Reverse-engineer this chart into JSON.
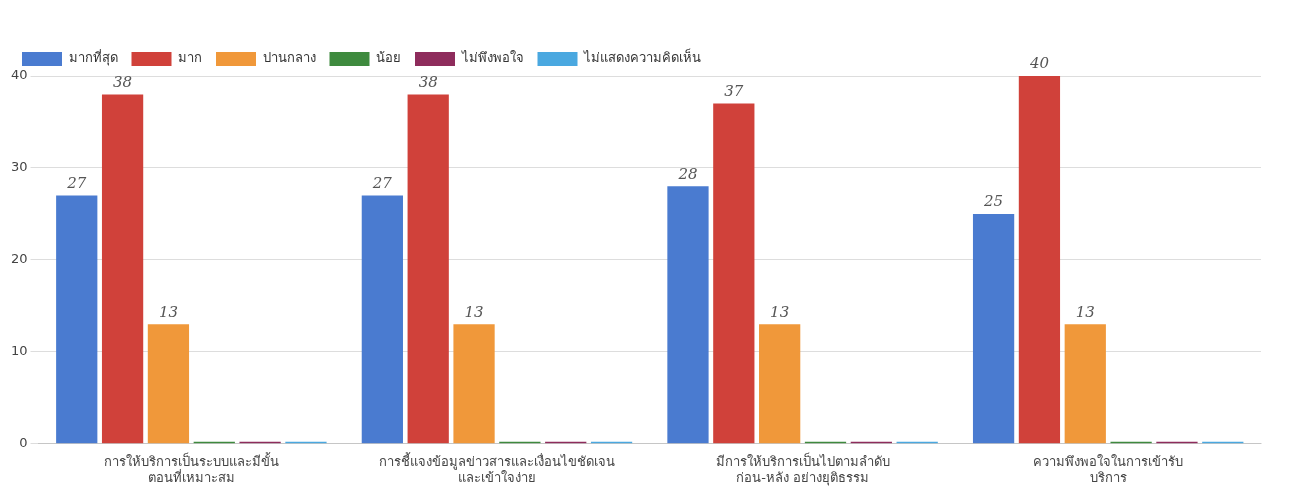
{
  "chart_data": {
    "type": "bar",
    "categories": [
      "การให้บริการเป็นระบบและมีขั้น\nตอนที่เหมาะสม",
      "การชี้แจงข้อมูลข่าวสารและเงื่อนไขชัดเจน\nและเข้าใจง่าย",
      "มีการให้บริการเป็นไปตามลำดับ\nก่อน-หลัง อย่างยุติธรรม",
      "ความพึงพอใจในการเข้ารับ\nบริการ"
    ],
    "series": [
      {
        "name": "มากที่สุด",
        "color": "#4a7bd0",
        "values": [
          27,
          27,
          28,
          25
        ],
        "value_labels": [
          "27",
          "27",
          "28",
          "25"
        ]
      },
      {
        "name": "มาก",
        "color": "#d0413a",
        "values": [
          38,
          38,
          37,
          40
        ],
        "value_labels": [
          "38",
          "38",
          "37",
          "40"
        ]
      },
      {
        "name": "ปานกลาง",
        "color": "#f0983a",
        "values": [
          13,
          13,
          13,
          13
        ],
        "value_labels": [
          "13",
          "13",
          "13",
          "13"
        ]
      },
      {
        "name": "น้อย",
        "color": "#3e8a3e",
        "values": [
          0,
          0,
          0,
          0
        ]
      },
      {
        "name": "ไม่พึงพอใจ",
        "color": "#8e2c5c",
        "values": [
          0,
          0,
          0,
          0
        ]
      },
      {
        "name": "ไม่แสดงความคิดเห็น",
        "color": "#4aa8e0",
        "values": [
          0,
          0,
          0,
          0
        ]
      }
    ],
    "ylim": [
      0,
      40
    ],
    "yticks": [
      0,
      10,
      20,
      30,
      40
    ],
    "grid": "y",
    "legend": "top"
  }
}
